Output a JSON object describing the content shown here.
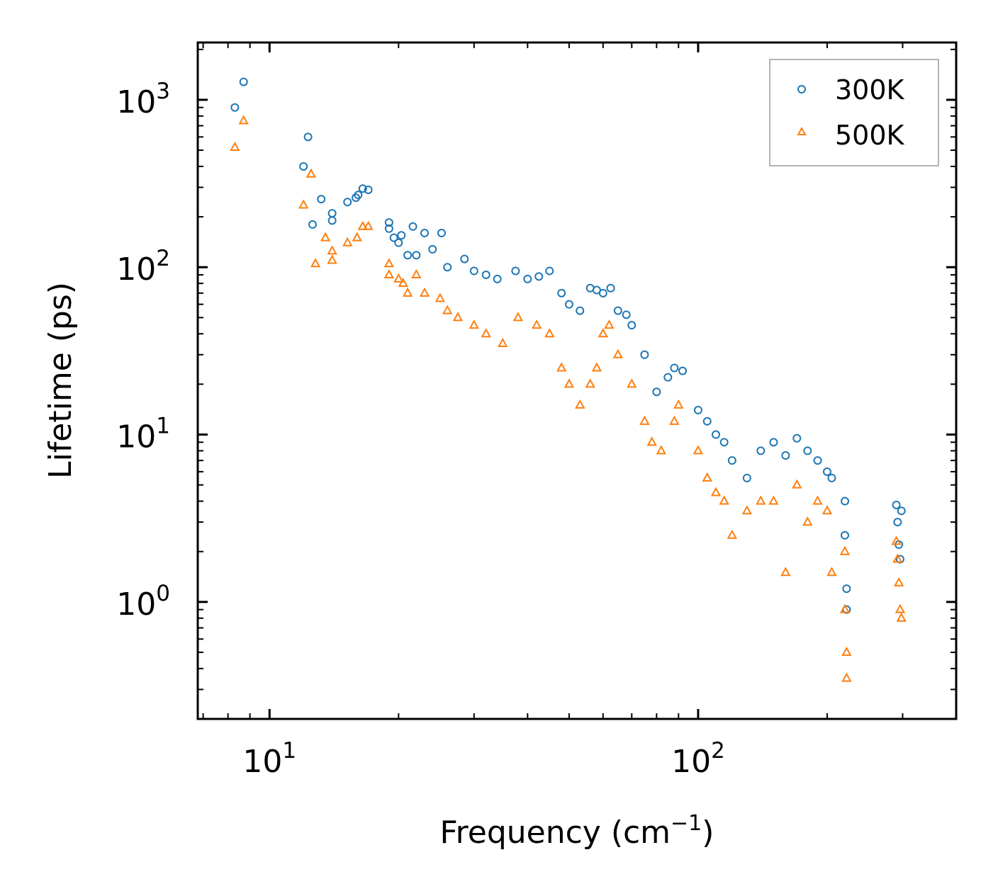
{
  "chart_data": {
    "type": "scatter",
    "xscale": "log",
    "yscale": "log",
    "xlabel": "Frequency (cm",
    "xlabel_sup": "−1",
    "xlabel_end": ")",
    "ylabel": "Lifetime (ps)",
    "xlim": [
      6.8,
      400
    ],
    "ylim": [
      0.2,
      2200
    ],
    "x_ticks": [
      {
        "value": 10,
        "base": "10",
        "exp": "1"
      },
      {
        "value": 100,
        "base": "10",
        "exp": "2"
      }
    ],
    "y_ticks": [
      {
        "value": 1,
        "base": "10",
        "exp": "0"
      },
      {
        "value": 10,
        "base": "10",
        "exp": "1"
      },
      {
        "value": 100,
        "base": "10",
        "exp": "2"
      },
      {
        "value": 1000,
        "base": "10",
        "exp": "3"
      }
    ],
    "legend": {
      "position": "top-right"
    },
    "series": [
      {
        "name": "300K",
        "marker": "circle",
        "color": "#1f77b4",
        "points": [
          [
            8.3,
            900
          ],
          [
            8.7,
            1280
          ],
          [
            12.0,
            400
          ],
          [
            12.3,
            600
          ],
          [
            12.6,
            180
          ],
          [
            13.2,
            255
          ],
          [
            14.0,
            190
          ],
          [
            14.0,
            210
          ],
          [
            15.2,
            245
          ],
          [
            15.9,
            260
          ],
          [
            16.1,
            270
          ],
          [
            16.5,
            295
          ],
          [
            17.0,
            290
          ],
          [
            19.0,
            170
          ],
          [
            19.0,
            185
          ],
          [
            19.5,
            150
          ],
          [
            20.0,
            140
          ],
          [
            20.3,
            155
          ],
          [
            21.0,
            118
          ],
          [
            21.6,
            175
          ],
          [
            22.0,
            118
          ],
          [
            23.0,
            160
          ],
          [
            24.0,
            128
          ],
          [
            25.2,
            160
          ],
          [
            26.0,
            100
          ],
          [
            28.5,
            112
          ],
          [
            30.0,
            95
          ],
          [
            32.0,
            90
          ],
          [
            34.0,
            85
          ],
          [
            37.5,
            95
          ],
          [
            40.0,
            85
          ],
          [
            42.5,
            88
          ],
          [
            45.0,
            95
          ],
          [
            48.0,
            70
          ],
          [
            50.0,
            60
          ],
          [
            53.0,
            55
          ],
          [
            56.0,
            75
          ],
          [
            58.0,
            73
          ],
          [
            60.0,
            70
          ],
          [
            62.5,
            75
          ],
          [
            65.0,
            55
          ],
          [
            68.0,
            52
          ],
          [
            70.0,
            45
          ],
          [
            75.0,
            30
          ],
          [
            80.0,
            18
          ],
          [
            85.0,
            22
          ],
          [
            88.0,
            25
          ],
          [
            92.0,
            24
          ],
          [
            100.0,
            14
          ],
          [
            105.0,
            12
          ],
          [
            110.0,
            10
          ],
          [
            115.0,
            9
          ],
          [
            120.0,
            7
          ],
          [
            130.0,
            5.5
          ],
          [
            140.0,
            8
          ],
          [
            150.0,
            9
          ],
          [
            160.0,
            7.5
          ],
          [
            170.0,
            9.5
          ],
          [
            180.0,
            8
          ],
          [
            190.0,
            7
          ],
          [
            200.0,
            6
          ],
          [
            205.0,
            5.5
          ],
          [
            220.0,
            4
          ],
          [
            220.0,
            2.5
          ],
          [
            222.0,
            1.2
          ],
          [
            222.0,
            0.9
          ],
          [
            290.0,
            3.8
          ],
          [
            292.0,
            3.0
          ],
          [
            294.0,
            2.2
          ],
          [
            296.0,
            1.8
          ],
          [
            298.0,
            3.5
          ]
        ]
      },
      {
        "name": "500K",
        "marker": "triangle",
        "color": "#ff7f0e",
        "points": [
          [
            8.3,
            520
          ],
          [
            8.7,
            750
          ],
          [
            12.0,
            235
          ],
          [
            12.5,
            360
          ],
          [
            12.8,
            105
          ],
          [
            13.5,
            150
          ],
          [
            14.0,
            110
          ],
          [
            14.0,
            125
          ],
          [
            15.2,
            140
          ],
          [
            16.0,
            150
          ],
          [
            16.5,
            175
          ],
          [
            17.0,
            175
          ],
          [
            19.0,
            105
          ],
          [
            19.0,
            90
          ],
          [
            20.0,
            85
          ],
          [
            20.5,
            80
          ],
          [
            21.0,
            70
          ],
          [
            22.0,
            90
          ],
          [
            23.0,
            70
          ],
          [
            25.0,
            65
          ],
          [
            26.0,
            55
          ],
          [
            27.5,
            50
          ],
          [
            30.0,
            45
          ],
          [
            32.0,
            40
          ],
          [
            35.0,
            35
          ],
          [
            38.0,
            50
          ],
          [
            42.0,
            45
          ],
          [
            45.0,
            40
          ],
          [
            48.0,
            25
          ],
          [
            50.0,
            20
          ],
          [
            53.0,
            15
          ],
          [
            56.0,
            20
          ],
          [
            58.0,
            25
          ],
          [
            60.0,
            40
          ],
          [
            62.0,
            45
          ],
          [
            65.0,
            30
          ],
          [
            70.0,
            20
          ],
          [
            75.0,
            12
          ],
          [
            78.0,
            9
          ],
          [
            82.0,
            8
          ],
          [
            88.0,
            12
          ],
          [
            90.0,
            15
          ],
          [
            100.0,
            8
          ],
          [
            105.0,
            5.5
          ],
          [
            110.0,
            4.5
          ],
          [
            115.0,
            4
          ],
          [
            120.0,
            2.5
          ],
          [
            130.0,
            3.5
          ],
          [
            140.0,
            4
          ],
          [
            150.0,
            4
          ],
          [
            160.0,
            1.5
          ],
          [
            170.0,
            5
          ],
          [
            180.0,
            3
          ],
          [
            190.0,
            4
          ],
          [
            200.0,
            3.5
          ],
          [
            205.0,
            1.5
          ],
          [
            220.0,
            2.0
          ],
          [
            220.0,
            0.9
          ],
          [
            222.0,
            0.5
          ],
          [
            222.0,
            0.35
          ],
          [
            290.0,
            2.3
          ],
          [
            292.0,
            1.8
          ],
          [
            294.0,
            1.3
          ],
          [
            296.0,
            0.9
          ],
          [
            298.0,
            0.8
          ]
        ]
      }
    ]
  }
}
